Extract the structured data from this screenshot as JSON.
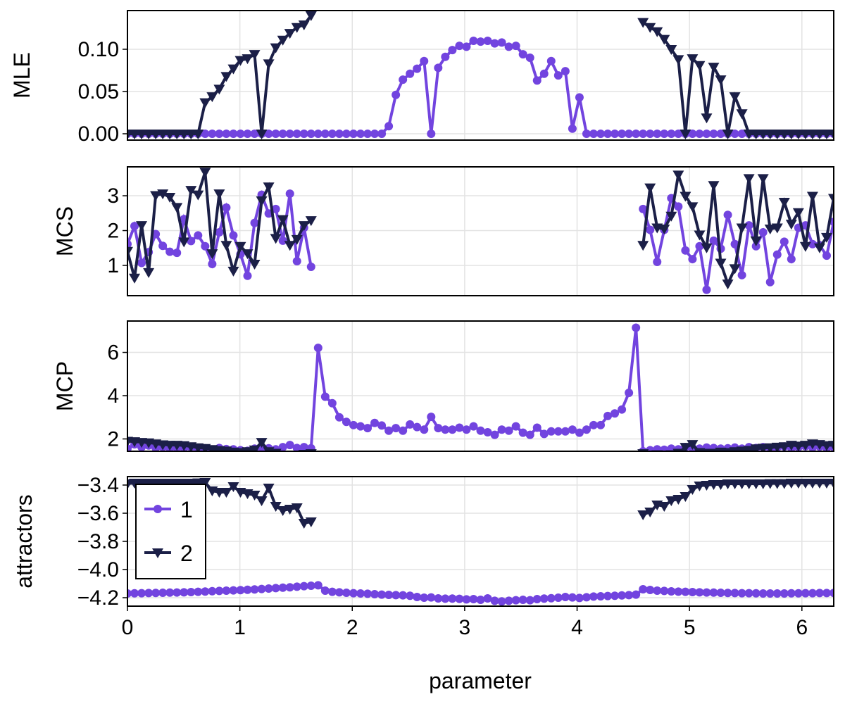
{
  "chart_data": {
    "type": "line",
    "xlabel": "parameter",
    "x": {
      "start": 0,
      "stop": 6.2832,
      "step": 0.062832
    },
    "xlim": [
      0,
      6.2832
    ],
    "xticks": [
      0,
      1,
      2,
      3,
      4,
      5,
      6
    ],
    "xtick_labels": [
      "0",
      "1",
      "2",
      "3",
      "4",
      "5",
      "6"
    ],
    "grid": true,
    "legend": {
      "placement": "bottom-panel top-left",
      "entries": [
        "1",
        "2"
      ]
    },
    "colors": {
      "1": "#7244DF",
      "2": "#1B1F47"
    },
    "markers": {
      "1": "circle",
      "2": "triangle-down"
    },
    "panels": [
      {
        "ylabel": "MLE",
        "ylim": [
          -0.0075,
          0.1458
        ],
        "yticks": [
          0,
          0.05,
          0.1
        ],
        "ytick_labels": [
          "0.00",
          "0.05",
          "0.10"
        ],
        "series": [
          {
            "name": "1",
            "values": [
              0,
              0,
              0,
              0,
              0,
              0,
              0,
              0,
              0,
              0,
              0,
              0,
              0,
              0,
              0,
              0,
              0,
              0,
              0,
              0,
              0,
              0,
              0,
              0,
              0,
              0,
              0,
              0,
              0,
              0,
              0,
              0,
              0,
              0,
              0,
              0,
              0,
              0.009,
              0.046,
              0.064,
              0.071,
              0.077,
              0.086,
              0.0,
              0.078,
              0.091,
              0.099,
              0.104,
              0.103,
              0.11,
              0.109,
              0.11,
              0.107,
              0.108,
              0.103,
              0.104,
              0.094,
              0.09,
              0.063,
              0.071,
              0.086,
              0.069,
              0.074,
              0.006,
              0.043,
              0,
              0,
              0,
              0,
              0,
              0,
              0,
              0,
              0,
              0,
              0,
              0,
              0,
              0,
              0,
              0,
              0,
              0,
              0,
              0,
              0,
              0,
              0,
              0,
              0,
              0,
              0,
              0,
              0,
              0,
              0,
              0,
              0,
              0,
              0,
              0
            ]
          },
          {
            "name": "2",
            "values": [
              0,
              0,
              0,
              0,
              0,
              0,
              0,
              0,
              0,
              0,
              0,
              0.037,
              0.044,
              0.053,
              0.068,
              0.077,
              0.087,
              0.089,
              0.094,
              0.0,
              0.083,
              0.102,
              0.111,
              0.119,
              0.126,
              0.129,
              0.14,
              null,
              null,
              null,
              null,
              null,
              null,
              null,
              null,
              null,
              null,
              null,
              null,
              null,
              null,
              null,
              null,
              null,
              null,
              null,
              null,
              null,
              null,
              null,
              null,
              null,
              null,
              null,
              null,
              null,
              null,
              null,
              null,
              null,
              null,
              null,
              null,
              null,
              null,
              null,
              null,
              null,
              null,
              null,
              null,
              null,
              null,
              0.132,
              0.126,
              0.121,
              0.112,
              0.1,
              0.088,
              0.0,
              0.089,
              0.081,
              0.019,
              0.079,
              0.064,
              0.0,
              0.044,
              0.024,
              0,
              0,
              0,
              0,
              0,
              0,
              0,
              0,
              0,
              0,
              0,
              0,
              0
            ]
          }
        ]
      },
      {
        "ylabel": "MCS",
        "ylim": [
          0.13,
          3.83
        ],
        "yticks": [
          1,
          2,
          3
        ],
        "ytick_labels": [
          "1",
          "2",
          "3"
        ],
        "series": [
          {
            "name": "1",
            "values": [
              1.61,
              2.13,
              1.07,
              1.38,
              1.9,
              1.56,
              1.39,
              1.36,
              2.33,
              1.7,
              1.86,
              1.55,
              1.04,
              1.95,
              2.66,
              1.86,
              1.32,
              0.7,
              2.22,
              3.03,
              2.49,
              2.62,
              1.71,
              3.06,
              1.12,
              2.08,
              0.96,
              null,
              null,
              null,
              null,
              null,
              null,
              null,
              null,
              null,
              null,
              null,
              null,
              null,
              null,
              null,
              null,
              null,
              null,
              null,
              null,
              null,
              null,
              null,
              null,
              null,
              null,
              null,
              null,
              null,
              null,
              null,
              null,
              null,
              null,
              null,
              null,
              null,
              null,
              null,
              null,
              null,
              null,
              null,
              null,
              null,
              null,
              2.62,
              2.02,
              1.1,
              2.02,
              2.93,
              2.69,
              1.43,
              1.18,
              1.55,
              0.3,
              1.71,
              1.48,
              2.45,
              1.61,
              0.72,
              2.15,
              1.55,
              1.95,
              0.52,
              1.31,
              1.68,
              1.18,
              2.08,
              2.15,
              1.61,
              1.58,
              1.28,
              2.25
            ]
          },
          {
            "name": "2",
            "values": [
              1.41,
              0.64,
              2.15,
              0.8,
              3.01,
              3.06,
              2.96,
              2.67,
              1.68,
              3.16,
              3.03,
              3.68,
              1.34,
              3.06,
              1.58,
              0.84,
              1.55,
              1.34,
              1.04,
              2.86,
              3.26,
              1.78,
              2.32,
              1.58,
              1.75,
              2.15,
              2.29,
              null,
              null,
              null,
              null,
              null,
              null,
              null,
              null,
              null,
              null,
              null,
              null,
              null,
              null,
              null,
              null,
              null,
              null,
              null,
              null,
              null,
              null,
              null,
              null,
              null,
              null,
              null,
              null,
              null,
              null,
              null,
              null,
              null,
              null,
              null,
              null,
              null,
              null,
              null,
              null,
              null,
              null,
              null,
              null,
              null,
              null,
              1.58,
              3.23,
              2.08,
              2.05,
              2.42,
              3.6,
              2.99,
              2.69,
              1.88,
              1.51,
              3.3,
              1.07,
              0.47,
              0.91,
              2.08,
              3.5,
              1.71,
              3.5,
              2.05,
              2.08,
              2.82,
              2.19,
              2.52,
              1.55,
              2.99,
              1.51,
              1.81,
              2.93
            ]
          }
        ]
      },
      {
        "ylabel": "MCP",
        "ylim": [
          1.43,
          7.45
        ],
        "yticks": [
          2,
          4,
          6
        ],
        "ytick_labels": [
          "2",
          "4",
          "6"
        ],
        "series": [
          {
            "name": "1",
            "values": [
              1.55,
              1.75,
              1.62,
              1.7,
              1.58,
              1.63,
              1.57,
              1.6,
              1.58,
              1.62,
              1.55,
              1.57,
              1.5,
              1.58,
              1.53,
              1.52,
              1.48,
              1.45,
              1.55,
              1.6,
              1.57,
              1.52,
              1.62,
              1.72,
              1.58,
              1.62,
              1.57,
              6.21,
              3.95,
              3.65,
              3.0,
              2.79,
              2.64,
              2.58,
              2.5,
              2.74,
              2.62,
              2.38,
              2.5,
              2.38,
              2.67,
              2.55,
              2.43,
              3.02,
              2.5,
              2.43,
              2.43,
              2.52,
              2.43,
              2.58,
              2.38,
              2.31,
              2.19,
              2.43,
              2.38,
              2.58,
              2.29,
              2.19,
              2.52,
              2.23,
              2.35,
              2.35,
              2.35,
              2.43,
              2.29,
              2.43,
              2.64,
              2.64,
              3.06,
              3.18,
              3.36,
              4.13,
              7.14,
              1.43,
              1.48,
              1.52,
              1.5,
              1.55,
              1.52,
              1.62,
              1.58,
              1.55,
              1.6,
              1.58,
              1.55,
              1.57,
              1.6,
              1.55,
              1.62,
              1.58,
              1.62,
              1.57,
              1.6,
              1.65,
              1.58,
              1.62,
              1.66,
              1.6,
              1.65,
              1.58,
              1.63
            ]
          },
          {
            "name": "2",
            "values": [
              1.9,
              1.88,
              1.85,
              1.83,
              1.78,
              1.74,
              1.72,
              1.72,
              1.7,
              1.65,
              1.6,
              1.57,
              1.52,
              1.47,
              1.45,
              1.4,
              1.38,
              1.42,
              1.5,
              1.85,
              1.42,
              1.35,
              1.25,
              1.2,
              1.15,
              1.3,
              1.33,
              null,
              null,
              null,
              null,
              null,
              null,
              null,
              null,
              null,
              null,
              null,
              null,
              null,
              null,
              null,
              null,
              null,
              null,
              null,
              null,
              null,
              null,
              null,
              null,
              null,
              null,
              null,
              null,
              null,
              null,
              null,
              null,
              null,
              null,
              null,
              null,
              null,
              null,
              null,
              null,
              null,
              null,
              null,
              null,
              null,
              null,
              1.33,
              1.25,
              1.28,
              1.22,
              1.28,
              1.35,
              1.62,
              1.75,
              1.38,
              1.35,
              1.35,
              1.4,
              1.38,
              1.42,
              1.45,
              1.48,
              1.55,
              1.58,
              1.6,
              1.63,
              1.65,
              1.72,
              1.68,
              1.72,
              1.78,
              1.75,
              1.7,
              1.72
            ]
          }
        ]
      },
      {
        "ylabel": "attractors",
        "ylim": [
          -4.26,
          -3.34
        ],
        "yticks": [
          -3.4,
          -3.6,
          -3.8,
          -4.0,
          -4.2
        ],
        "ytick_labels": [
          "−3.4",
          "−3.6",
          "−3.8",
          "−4.0",
          "−4.2"
        ],
        "series": [
          {
            "name": "1",
            "values": [
              -4.17,
              -4.169,
              -4.168,
              -4.167,
              -4.166,
              -4.165,
              -4.164,
              -4.163,
              -4.162,
              -4.16,
              -4.158,
              -4.156,
              -4.154,
              -4.152,
              -4.15,
              -4.148,
              -4.146,
              -4.144,
              -4.141,
              -4.138,
              -4.135,
              -4.132,
              -4.129,
              -4.126,
              -4.122,
              -4.118,
              -4.115,
              -4.112,
              -4.15,
              -4.158,
              -4.162,
              -4.165,
              -4.168,
              -4.17,
              -4.172,
              -4.175,
              -4.178,
              -4.18,
              -4.182,
              -4.183,
              -4.186,
              -4.195,
              -4.2,
              -4.198,
              -4.205,
              -4.207,
              -4.206,
              -4.208,
              -4.212,
              -4.21,
              -4.215,
              -4.205,
              -4.222,
              -4.226,
              -4.222,
              -4.218,
              -4.215,
              -4.218,
              -4.21,
              -4.206,
              -4.204,
              -4.2,
              -4.195,
              -4.198,
              -4.202,
              -4.197,
              -4.192,
              -4.19,
              -4.188,
              -4.186,
              -4.184,
              -4.182,
              -4.178,
              -4.14,
              -4.145,
              -4.15,
              -4.152,
              -4.155,
              -4.157,
              -4.158,
              -4.16,
              -4.162,
              -4.163,
              -4.164,
              -4.165,
              -4.166,
              -4.167,
              -4.168,
              -4.168,
              -4.169,
              -4.17,
              -4.17,
              -4.17,
              -4.17,
              -4.169,
              -4.169,
              -4.168,
              -4.168,
              -4.167,
              -4.167,
              -4.166
            ]
          },
          {
            "name": "2",
            "values": [
              -3.39,
              -3.385,
              -3.385,
              -3.385,
              -3.385,
              -3.385,
              -3.385,
              -3.385,
              -3.385,
              -3.385,
              -3.383,
              -3.38,
              -3.44,
              -3.45,
              -3.45,
              -3.41,
              -3.45,
              -3.46,
              -3.47,
              -3.51,
              -3.42,
              -3.55,
              -3.58,
              -3.57,
              -3.56,
              -3.67,
              -3.66,
              null,
              null,
              null,
              null,
              null,
              null,
              null,
              null,
              null,
              null,
              null,
              null,
              null,
              null,
              null,
              null,
              null,
              null,
              null,
              null,
              null,
              null,
              null,
              null,
              null,
              null,
              null,
              null,
              null,
              null,
              null,
              null,
              null,
              null,
              null,
              null,
              null,
              null,
              null,
              null,
              null,
              null,
              null,
              null,
              null,
              null,
              -3.61,
              -3.59,
              -3.54,
              -3.55,
              -3.51,
              -3.5,
              -3.48,
              -3.43,
              -3.405,
              -3.4,
              -3.395,
              -3.395,
              -3.39,
              -3.39,
              -3.39,
              -3.39,
              -3.39,
              -3.39,
              -3.388,
              -3.388,
              -3.388,
              -3.385,
              -3.385,
              -3.385,
              -3.385,
              -3.385,
              -3.385,
              -3.385
            ]
          }
        ]
      }
    ]
  }
}
